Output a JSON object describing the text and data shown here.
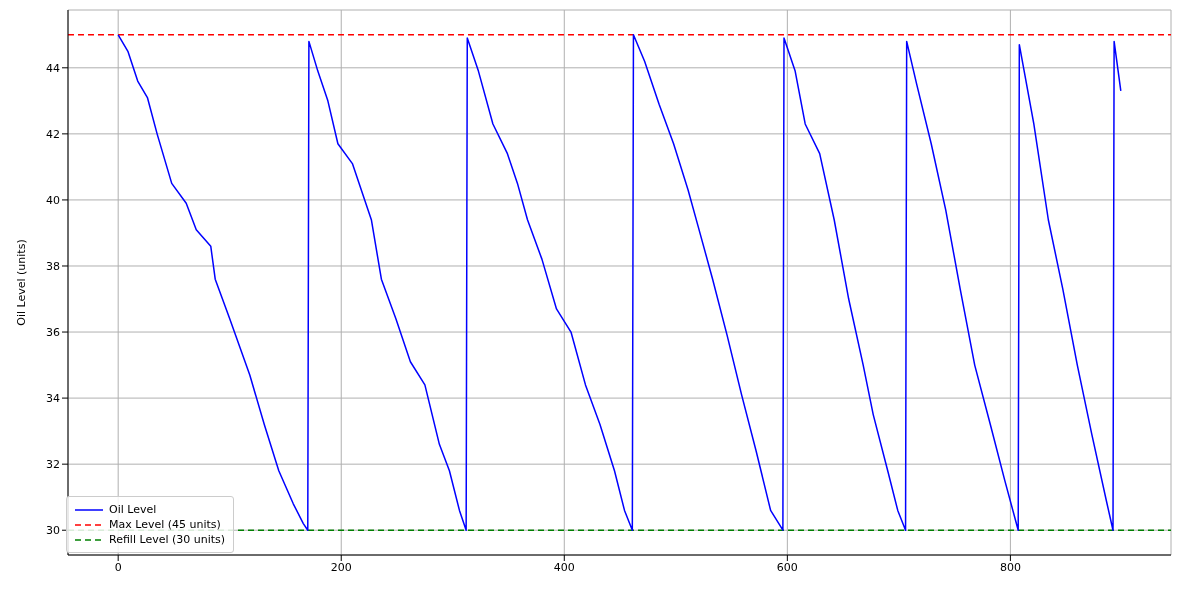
{
  "chart_data": {
    "type": "line",
    "ylabel": "Oil Level (units)",
    "xlim": [
      -45,
      944
    ],
    "xticks": [
      0,
      200,
      400,
      600,
      800
    ],
    "ylim": [
      29.25,
      45.75
    ],
    "yticks": [
      30,
      32,
      34,
      36,
      38,
      40,
      42,
      44
    ],
    "grid": true,
    "legend": "bottom left",
    "marker": "none",
    "line_style": "solid",
    "series": [
      {
        "name": "Oil Level",
        "color": "#0000ff",
        "x": [
          0,
          8.7,
          17.5,
          26.2,
          34.9,
          48,
          61,
          70,
          83,
          87,
          100,
          118,
          131,
          144,
          157,
          166,
          170,
          171,
          179,
          188,
          197,
          210,
          218,
          227,
          236,
          249,
          262,
          275,
          288,
          297,
          306,
          312,
          313,
          323,
          336,
          349,
          358,
          367,
          380,
          393,
          406,
          419,
          432,
          445,
          454,
          461,
          462,
          472,
          485,
          498,
          511,
          520,
          533,
          546,
          559,
          572,
          585,
          596,
          597,
          607,
          616,
          629,
          642,
          655,
          668,
          677,
          690,
          699,
          706,
          707,
          716,
          729,
          742,
          755,
          768,
          782,
          795,
          807,
          808,
          821,
          834,
          847,
          860,
          873,
          886,
          892,
          893,
          899
        ],
        "values": [
          45.0,
          44.5,
          43.6,
          43.1,
          42.0,
          40.5,
          39.9,
          39.1,
          38.6,
          37.6,
          36.4,
          34.7,
          33.2,
          31.8,
          30.8,
          30.2,
          30.0,
          44.8,
          43.9,
          43.0,
          41.7,
          41.1,
          40.3,
          39.4,
          37.6,
          36.4,
          35.1,
          34.4,
          32.6,
          31.8,
          30.6,
          30.0,
          44.9,
          43.9,
          42.3,
          41.4,
          40.5,
          39.4,
          38.2,
          36.7,
          36.0,
          34.4,
          33.2,
          31.8,
          30.6,
          30.0,
          45.0,
          44.2,
          42.9,
          41.7,
          40.3,
          39.2,
          37.6,
          35.9,
          34.1,
          32.4,
          30.6,
          30.0,
          44.9,
          43.9,
          42.3,
          41.4,
          39.4,
          37.0,
          35.0,
          33.5,
          31.8,
          30.6,
          30.0,
          44.8,
          43.5,
          41.7,
          39.7,
          37.3,
          35.0,
          33.2,
          31.5,
          30.0,
          44.7,
          42.3,
          39.4,
          37.3,
          35.0,
          32.9,
          30.9,
          30.0,
          44.8,
          43.3
        ]
      }
    ],
    "ref_lines": [
      {
        "axis": "y",
        "value": 45,
        "label": "Max Level (45 units)",
        "color": "#ff0000",
        "line_style": "dashed"
      },
      {
        "axis": "y",
        "value": 30,
        "label": "Refill Level (30 units)",
        "color": "#008000",
        "line_style": "dashed"
      }
    ]
  }
}
